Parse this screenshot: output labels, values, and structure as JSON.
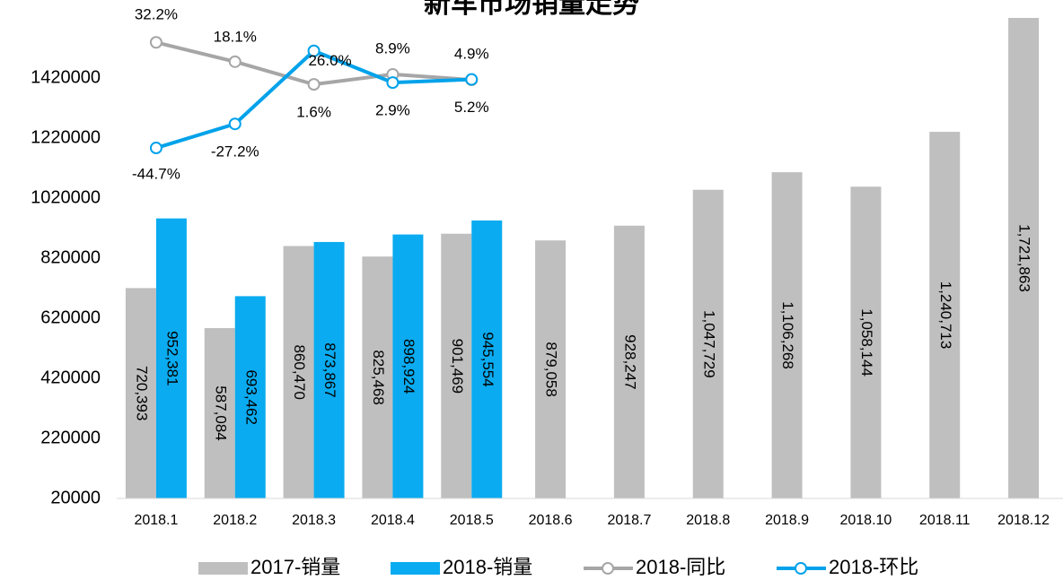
{
  "chart_data": {
    "type": "bar-line",
    "title": "新车市场销量走势",
    "categories": [
      "2018.1",
      "2018.2",
      "2018.3",
      "2018.4",
      "2018.5",
      "2018.6",
      "2018.7",
      "2018.8",
      "2018.9",
      "2018.10",
      "2018.11",
      "2018.12"
    ],
    "ylim": [
      20000,
      1620000
    ],
    "yticks": [
      20000,
      220000,
      420000,
      620000,
      820000,
      1020000,
      1220000,
      1420000
    ],
    "y2lim": [
      -300,
      50
    ],
    "series": [
      {
        "name": "2017-销量",
        "type": "bar",
        "color": "#bfbfbf",
        "values": [
          720393,
          587084,
          860470,
          825468,
          901469,
          879058,
          928247,
          1047729,
          1106268,
          1058144,
          1240713,
          1721863
        ],
        "value_labels": [
          "720,393",
          "587,084",
          "860,470",
          "825,468",
          "901,469",
          "879,058",
          "928,247",
          "1,047,729",
          "1,106,268",
          "1,058,144",
          "1,240,713",
          "1,721,863"
        ]
      },
      {
        "name": "2018-销量",
        "type": "bar",
        "color": "#0aabf0",
        "values": [
          952381,
          693462,
          873867,
          898924,
          945554,
          null,
          null,
          null,
          null,
          null,
          null,
          null
        ],
        "value_labels": [
          "952,381",
          "693,462",
          "873,867",
          "898,924",
          "945,554",
          null,
          null,
          null,
          null,
          null,
          null,
          null
        ]
      },
      {
        "name": "2018-同比",
        "type": "line",
        "axis": "y2",
        "color": "#a6a6a6",
        "label_color": "#8c8c8c",
        "values": [
          32.2,
          18.1,
          1.6,
          8.9,
          4.9,
          null,
          null,
          null,
          null,
          null,
          null,
          null
        ],
        "value_labels": [
          "32.2%",
          "18.1%",
          "1.6%",
          "8.9%",
          "4.9%",
          null,
          null,
          null,
          null,
          null,
          null,
          null
        ]
      },
      {
        "name": "2018-环比",
        "type": "line",
        "axis": "y2",
        "color": "#00a2ea",
        "label_color": "#1f4e79",
        "values": [
          -44.7,
          -27.2,
          26.0,
          2.9,
          5.2,
          null,
          null,
          null,
          null,
          null,
          null,
          null
        ],
        "value_labels": [
          "-44.7%",
          "-27.2%",
          "26.0%",
          "2.9%",
          "5.2%",
          null,
          null,
          null,
          null,
          null,
          null,
          null
        ]
      }
    ]
  }
}
